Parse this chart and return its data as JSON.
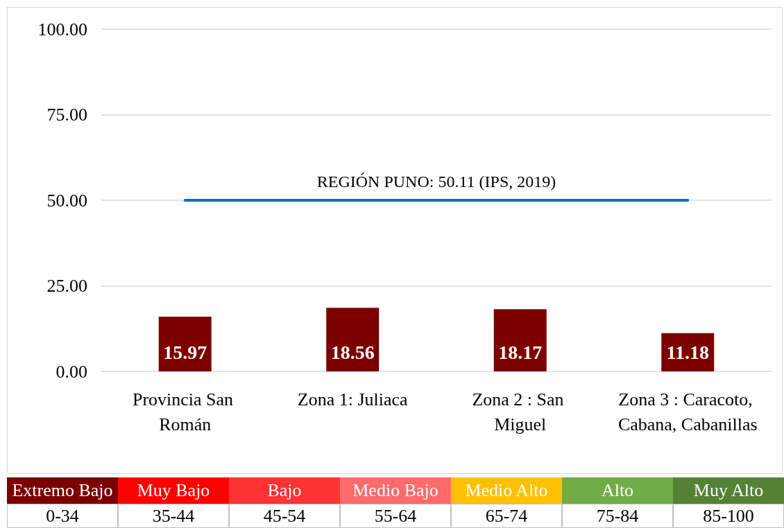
{
  "chart_data": [
    {
      "type": "bar",
      "categories": [
        "Provincia San Román",
        "Zona 1: Juliaca",
        "Zona 2 : San Miguel",
        "Zona 3 : Caracoto, Cabana, Cabanillas"
      ],
      "values": [
        15.97,
        18.56,
        18.17,
        11.18
      ],
      "color": "#7b0000",
      "data_labels": true,
      "ylim": [
        0,
        100
      ],
      "yticks": [
        {
          "value": 0,
          "label": "0.00"
        },
        {
          "value": 25,
          "label": "25.00"
        },
        {
          "value": 50,
          "label": "50.00"
        },
        {
          "value": 75,
          "label": "75.00"
        },
        {
          "value": 100,
          "label": "100.00"
        }
      ],
      "grid": "y",
      "ref_lines": [
        {
          "axis": "y",
          "value": 50.11,
          "label": "REGIÓN PUNO: 50.11 (IPS, 2019)",
          "color": "#0070c0"
        }
      ]
    },
    {
      "type": "other",
      "categories": [
        "Extremo Bajo",
        "Muy Bajo",
        "Bajo",
        "Medio Bajo",
        "Medio Alto",
        "Alto",
        "Muy Alto"
      ],
      "value_labels": [
        "0-34",
        "35-44",
        "45-54",
        "55-64",
        "65-74",
        "75-84",
        "85-100"
      ],
      "colors": [
        "#7b0000",
        "#ff0000",
        "#ff3333",
        "#ff6b6b",
        "#ffc000",
        "#70ad47",
        "#548235"
      ]
    }
  ]
}
